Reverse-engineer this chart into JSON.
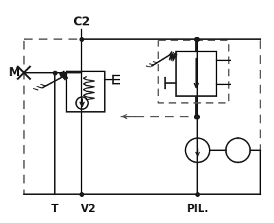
{
  "bg_color": "#ffffff",
  "line_color": "#1a1a1a",
  "dash_color": "#555555",
  "label_C2": "C2",
  "label_M": "M",
  "label_T": "T",
  "label_V2": "V2",
  "label_PIL": "PIL.",
  "fig_width": 4.0,
  "fig_height": 3.25,
  "dpi": 100
}
